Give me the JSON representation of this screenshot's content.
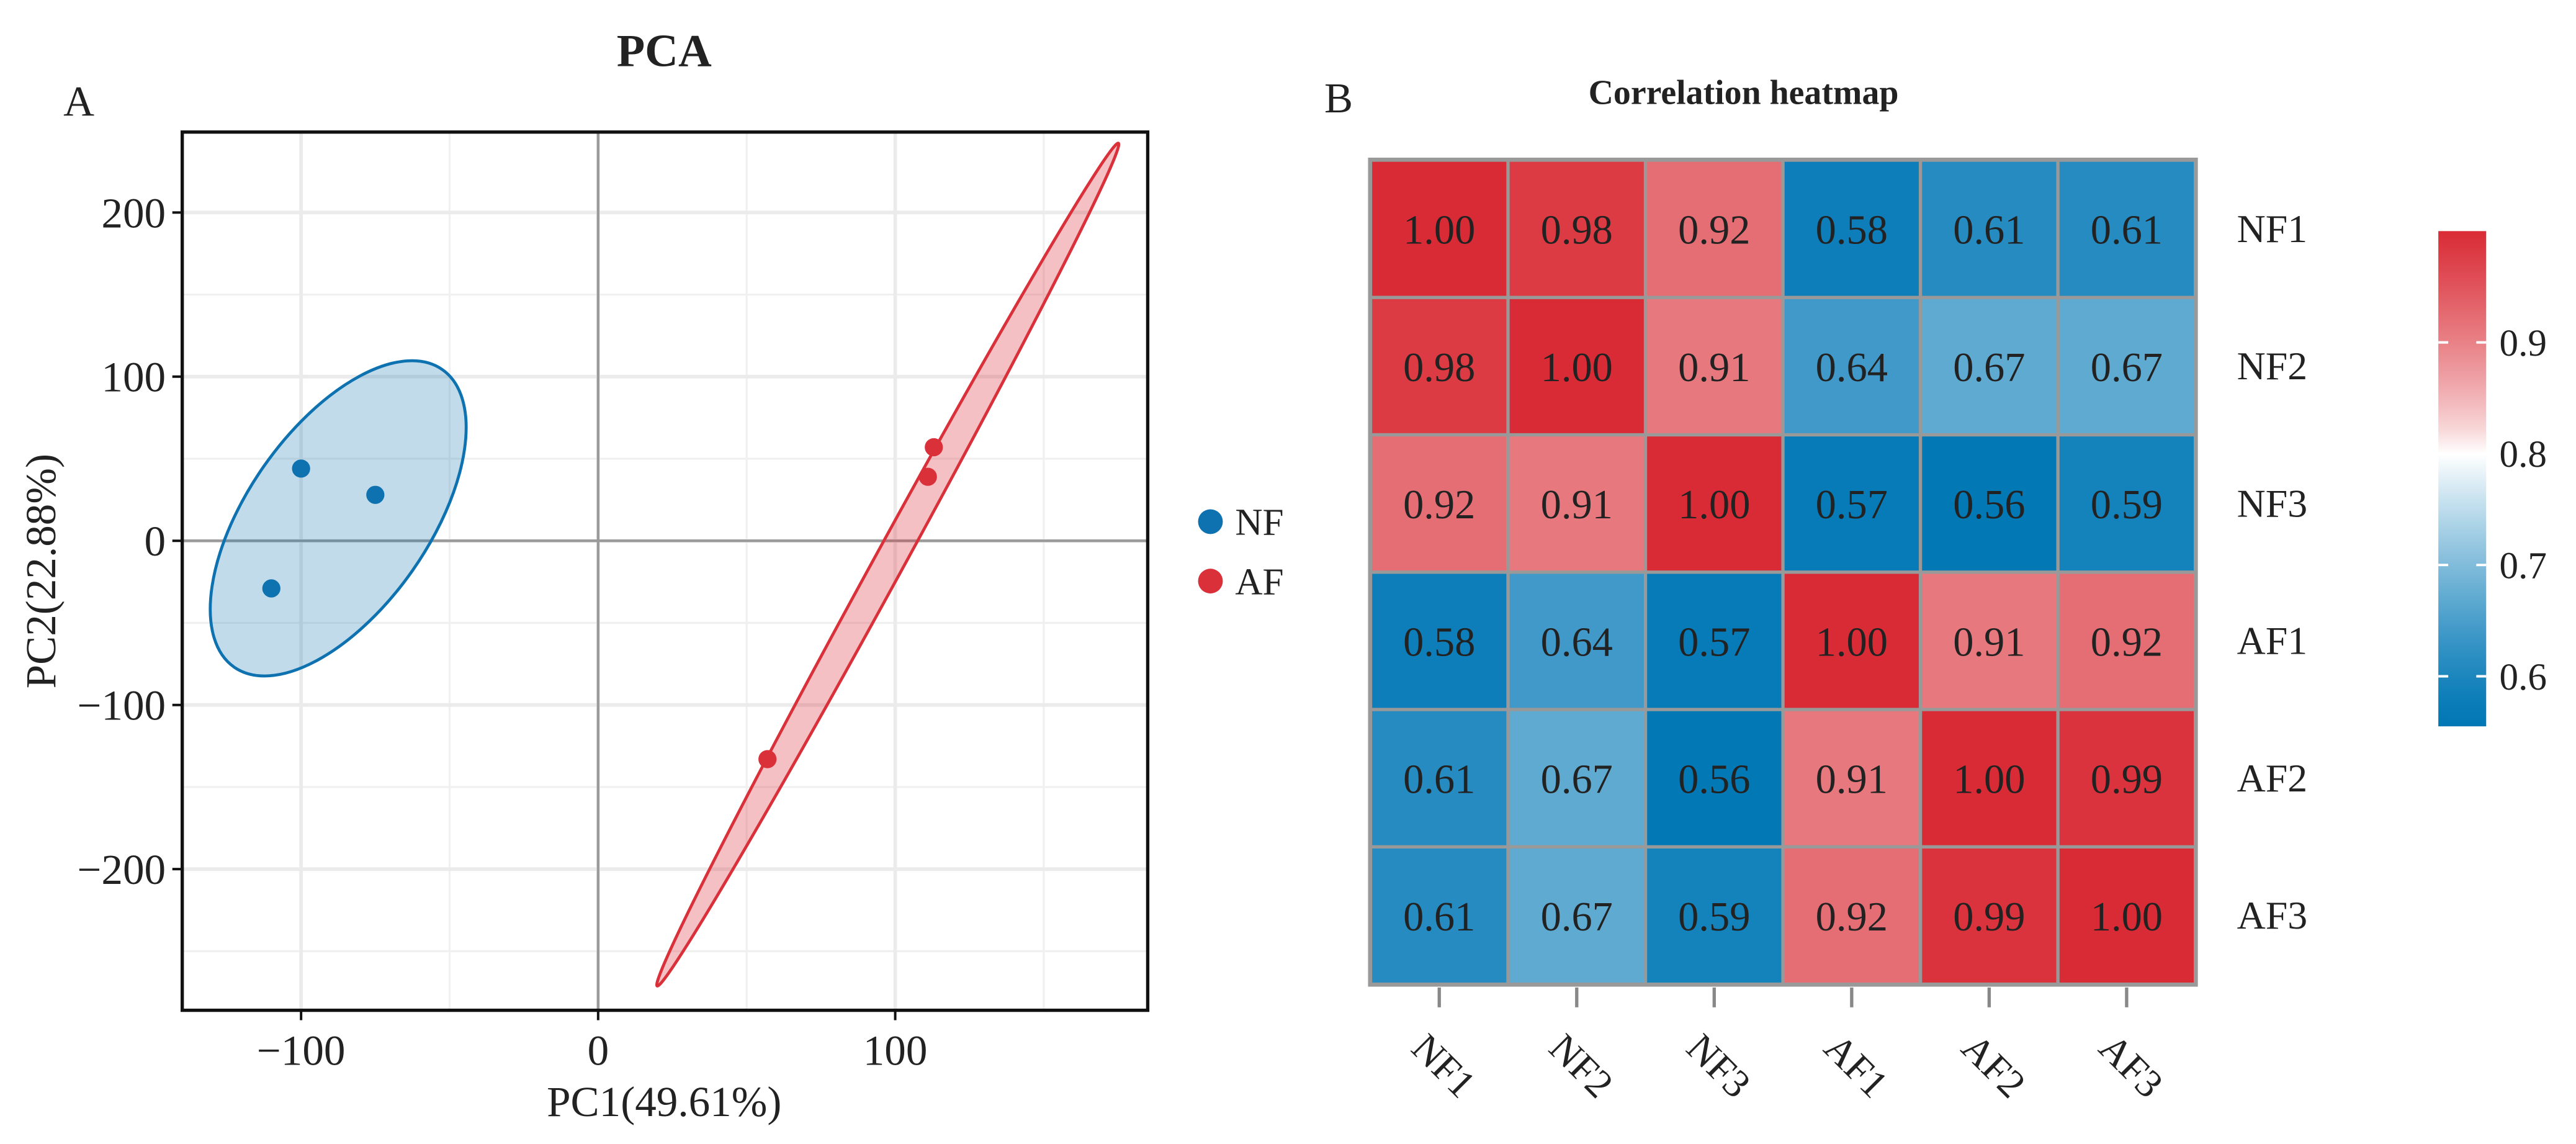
{
  "chart_data": [
    {
      "type": "scatter",
      "panel_label": "A",
      "title": "PCA",
      "xlabel": "PC1(49.61%)",
      "ylabel": "PC2(22.88%)",
      "xlim": [
        -140,
        185
      ],
      "ylim": [
        -286,
        249
      ],
      "xticks": [
        -100,
        0,
        100
      ],
      "yticks": [
        200,
        100,
        0,
        -100,
        -200
      ],
      "xtick_labels": [
        "−100",
        "0",
        "100"
      ],
      "ytick_labels": [
        "200",
        "100",
        "0",
        "−100",
        "−200"
      ],
      "grid": true,
      "legend_position": "right",
      "series": [
        {
          "name": "NF",
          "color": "#0E72B0",
          "points": [
            [
              -100,
              44
            ],
            [
              -75,
              28
            ],
            [
              -110,
              -29
            ]
          ]
        },
        {
          "name": "AF",
          "color": "#D9303A",
          "points": [
            [
              113,
              57
            ],
            [
              111,
              39
            ],
            [
              57,
              -133
            ]
          ]
        }
      ]
    },
    {
      "type": "heatmap",
      "panel_label": "B",
      "title": "Correlation heatmap",
      "row_labels": [
        "NF1",
        "NF2",
        "NF3",
        "AF1",
        "AF2",
        "AF3"
      ],
      "col_labels": [
        "NF1",
        "NF2",
        "NF3",
        "AF1",
        "AF2",
        "AF3"
      ],
      "values": [
        [
          "1.00",
          "0.98",
          "0.92",
          "0.58",
          "0.61",
          "0.61"
        ],
        [
          "0.98",
          "1.00",
          "0.91",
          "0.64",
          "0.67",
          "0.67"
        ],
        [
          "0.92",
          "0.91",
          "1.00",
          "0.57",
          "0.56",
          "0.59"
        ],
        [
          "0.58",
          "0.64",
          "0.57",
          "1.00",
          "0.91",
          "0.92"
        ],
        [
          "0.61",
          "0.67",
          "0.56",
          "0.91",
          "1.00",
          "0.99"
        ],
        [
          "0.61",
          "0.67",
          "0.59",
          "0.92",
          "0.99",
          "1.00"
        ]
      ],
      "colorbar": {
        "range": [
          0.555,
          1.0
        ],
        "ticks": [
          0.9,
          0.8,
          0.7,
          0.6
        ],
        "tick_labels": [
          "0.9",
          "0.8",
          "0.7",
          "0.6"
        ],
        "low_color": "#0077B5",
        "mid_color": "#FFFFFF",
        "mid_value": 0.8,
        "high_color": "#D92B35"
      }
    }
  ]
}
